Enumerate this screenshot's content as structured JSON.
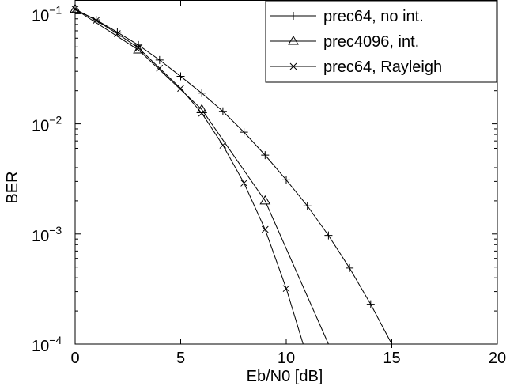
{
  "chart_data": {
    "type": "line",
    "xlabel": "Eb/N0 [dB]",
    "ylabel": "BER",
    "xlim": [
      0,
      20
    ],
    "ylim": [
      0.0001,
      0.1
    ],
    "yscale": "log",
    "grid": false,
    "legend_position": "top-right",
    "x_ticks": [
      0,
      5,
      10,
      15,
      20
    ],
    "x_tick_labels": [
      "0",
      "5",
      "10",
      "15",
      "20"
    ],
    "y_ticks": [
      {
        "value": 0.1,
        "base": "10",
        "exp": "−1"
      },
      {
        "value": 0.01,
        "base": "10",
        "exp": "−2"
      },
      {
        "value": 0.001,
        "base": "10",
        "exp": "−3"
      },
      {
        "value": 0.0001,
        "base": "10",
        "exp": "−4"
      }
    ],
    "series": [
      {
        "name": "prec64, no int.",
        "marker": "plus",
        "x": [
          0,
          1,
          2,
          3,
          4,
          5,
          6,
          7,
          8,
          9,
          10,
          11,
          12,
          13,
          14,
          15
        ],
        "y": [
          0.11,
          0.088,
          0.068,
          0.052,
          0.038,
          0.027,
          0.019,
          0.013,
          0.0084,
          0.0052,
          0.0031,
          0.0018,
          0.00097,
          0.00049,
          0.00023,
          0.0001
        ]
      },
      {
        "name": "prec4096, int.",
        "marker": "triangle",
        "x": [
          0,
          3,
          6,
          9,
          12
        ],
        "y": [
          0.11,
          0.047,
          0.0135,
          0.002,
          0.0001
        ]
      },
      {
        "name": "prec64, Rayleigh",
        "marker": "x",
        "x": [
          0,
          1,
          2,
          3,
          4,
          5,
          6,
          7,
          8,
          9,
          10,
          10.8
        ],
        "y": [
          0.11,
          0.087,
          0.066,
          0.049,
          0.032,
          0.021,
          0.0125,
          0.0064,
          0.0029,
          0.0011,
          0.00032,
          0.0001
        ]
      }
    ]
  }
}
